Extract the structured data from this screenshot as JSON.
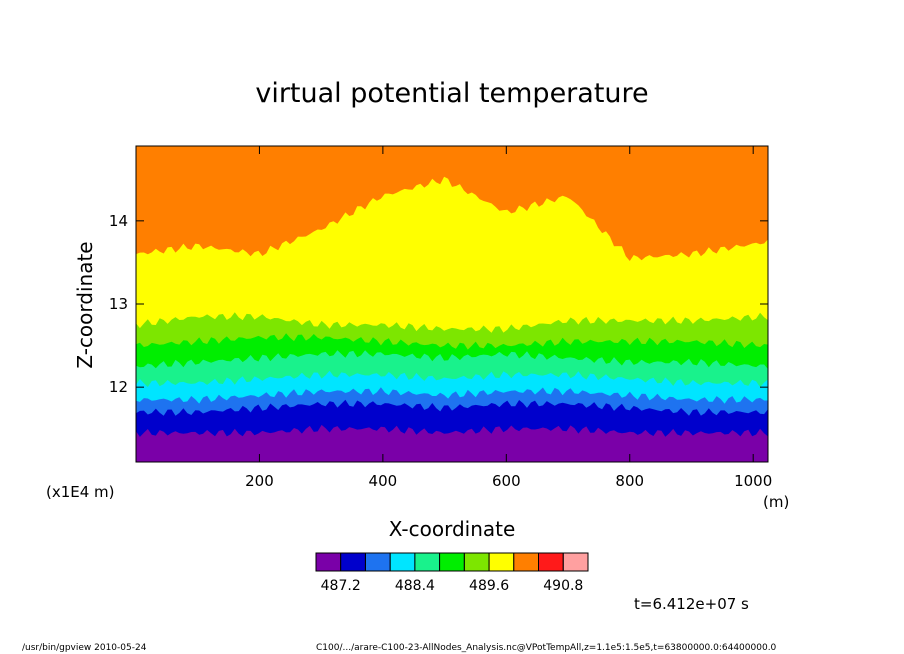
{
  "chart_data": {
    "type": "heatmap",
    "title": "virtual potential temperature",
    "xlabel": "X-coordinate",
    "ylabel": "Z-coordinate",
    "x_units": "(m)",
    "y_scale_note": "(x1E4 m)",
    "xlim": [
      0,
      1024
    ],
    "ylim": [
      11.1,
      14.9
    ],
    "x_ticks": [
      200,
      400,
      600,
      800,
      1000
    ],
    "y_ticks": [
      12,
      13,
      14
    ],
    "levels": [
      486.8,
      487.2,
      487.6,
      488.0,
      488.4,
      488.8,
      489.2,
      489.6,
      490.0,
      490.4,
      490.8,
      491.2
    ],
    "colorbar_labels": [
      "487.2",
      "488.4",
      "489.6",
      "490.8"
    ],
    "colors": [
      "#7a00a8",
      "#0000cc",
      "#1e73f0",
      "#00e5ff",
      "#19f28c",
      "#00ee00",
      "#7de600",
      "#ffff00",
      "#ff7f00",
      "#ff1a1a",
      "#ffa0a0"
    ],
    "time_label": "t=6.412e+07 s",
    "profile": {
      "description_levels_z": "approximate z (x1E4 m) of each contour boundary",
      "x": [
        0,
        100,
        200,
        300,
        400,
        500,
        600,
        700,
        800,
        900,
        1024
      ],
      "purple_top": [
        11.45,
        11.45,
        11.45,
        11.5,
        11.5,
        11.45,
        11.5,
        11.5,
        11.45,
        11.45,
        11.45
      ],
      "blue_top": [
        11.7,
        11.7,
        11.75,
        11.8,
        11.8,
        11.75,
        11.8,
        11.8,
        11.75,
        11.7,
        11.7
      ],
      "lightblue_top": [
        11.85,
        11.85,
        11.9,
        11.95,
        11.95,
        11.9,
        11.95,
        11.95,
        11.9,
        11.85,
        11.85
      ],
      "cyan_top": [
        12.05,
        12.05,
        12.1,
        12.15,
        12.15,
        12.1,
        12.15,
        12.15,
        12.1,
        12.05,
        12.05
      ],
      "teal_top": [
        12.25,
        12.3,
        12.35,
        12.4,
        12.4,
        12.35,
        12.4,
        12.35,
        12.3,
        12.3,
        12.25
      ],
      "green_top": [
        12.5,
        12.55,
        12.6,
        12.6,
        12.55,
        12.5,
        12.5,
        12.55,
        12.55,
        12.55,
        12.5
      ],
      "lime_top": [
        12.75,
        12.85,
        12.85,
        12.75,
        12.75,
        12.7,
        12.7,
        12.8,
        12.8,
        12.8,
        12.85
      ],
      "yellow_top": [
        13.6,
        13.7,
        13.6,
        13.9,
        14.3,
        14.5,
        14.1,
        14.3,
        13.55,
        13.6,
        13.75
      ]
    }
  },
  "footer": {
    "left": "/usr/bin/gpview  2010-05-24",
    "right": "C100/.../arare-C100-23-AllNodes_Analysis.nc@VPotTempAll,z=1.1e5:1.5e5,t=63800000.0:64400000.0"
  }
}
